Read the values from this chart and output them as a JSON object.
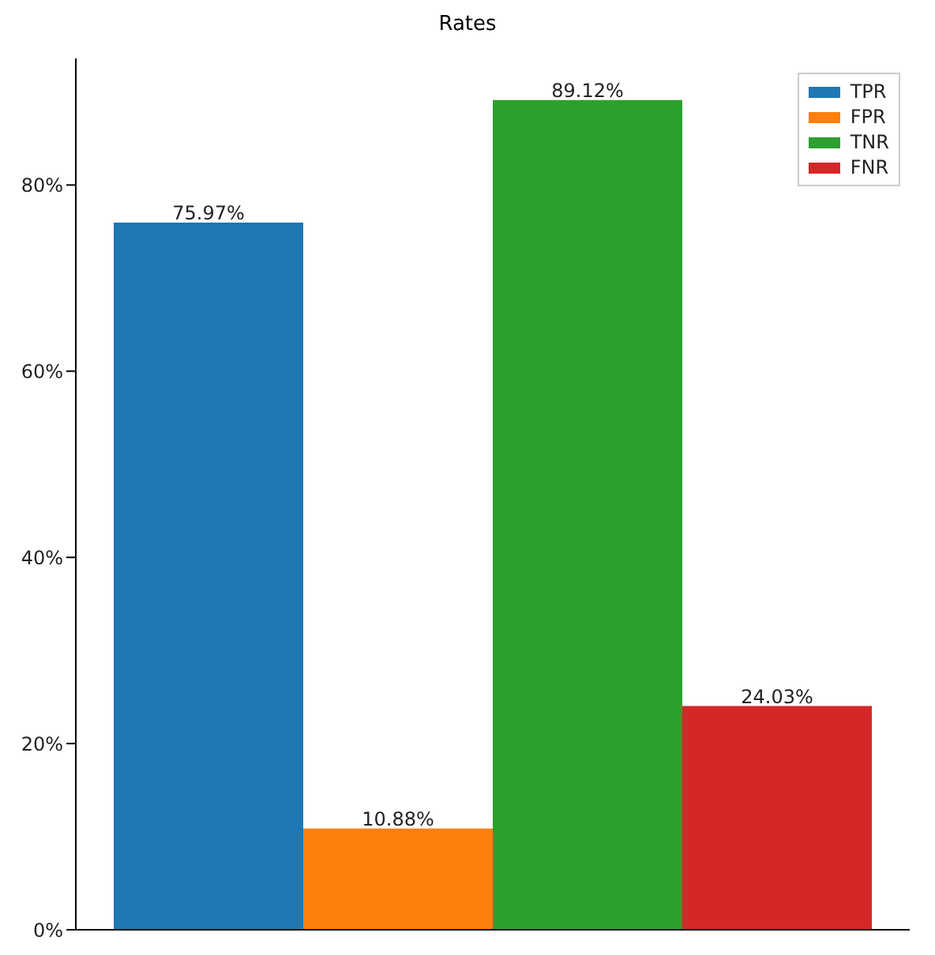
{
  "chart_data": {
    "type": "bar",
    "title": "Rates",
    "categories": [
      null,
      null,
      null,
      null
    ],
    "series": [
      {
        "name": "TPR",
        "color": "#1f77b4",
        "values": [
          75.97,
          null,
          null,
          null
        ],
        "value_labels": [
          "75.97%",
          null,
          null,
          null
        ]
      },
      {
        "name": "FPR",
        "color": "#ff7f0e",
        "values": [
          null,
          10.88,
          null,
          null
        ],
        "value_labels": [
          null,
          "10.88%",
          null,
          null
        ]
      },
      {
        "name": "TNR",
        "color": "#2ca02c",
        "values": [
          null,
          null,
          89.12,
          null
        ],
        "value_labels": [
          null,
          null,
          "89.12%",
          null
        ]
      },
      {
        "name": "FNR",
        "color": "#d62728",
        "values": [
          null,
          null,
          null,
          24.03
        ],
        "value_labels": [
          null,
          null,
          null,
          "24.03%"
        ]
      }
    ],
    "ylim": [
      0,
      93.6
    ],
    "yticks": [
      {
        "value": 0,
        "label": "0%"
      },
      {
        "value": 20,
        "label": "20%"
      },
      {
        "value": 40,
        "label": "40%"
      },
      {
        "value": 60,
        "label": "60%"
      },
      {
        "value": 80,
        "label": "80%"
      }
    ],
    "grid": false,
    "legend": "top right",
    "tick_labels": "y"
  }
}
